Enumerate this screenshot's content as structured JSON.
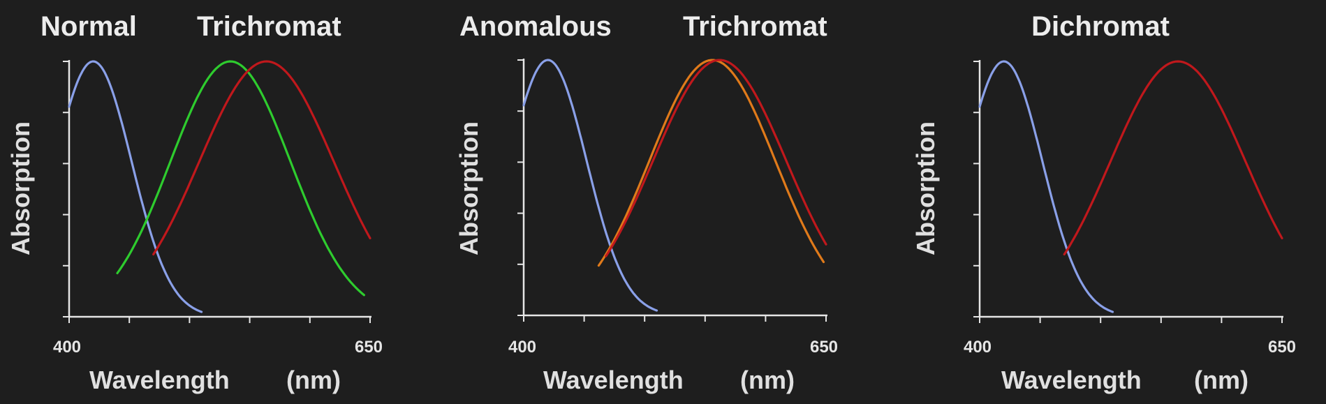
{
  "chart_data": [
    {
      "type": "line",
      "title_left": "Normal",
      "title_right": "Trichromat",
      "xlabel": "Wavelength",
      "xunit": "(nm)",
      "ylabel": "Absorption",
      "xlim": [
        400,
        650
      ],
      "ylim": [
        0,
        1
      ],
      "x_tick_labels": [
        "400",
        "650"
      ],
      "x_ticks": [
        400,
        450,
        500,
        550,
        600,
        650
      ],
      "y_ticks": [
        0,
        0.2,
        0.4,
        0.6,
        0.8,
        1.0
      ],
      "grid": false,
      "series": [
        {
          "color": "#8aa0e8",
          "peak": 420,
          "sigma": 32,
          "x_range": [
            400,
            510
          ]
        },
        {
          "color": "#2ecc2e",
          "peak": 534,
          "sigma": 50,
          "x_range": [
            440,
            645
          ]
        },
        {
          "color": "#c0181c",
          "peak": 564,
          "sigma": 56,
          "x_range": [
            470,
            650
          ]
        }
      ]
    },
    {
      "type": "line",
      "title_left": "Anomalous",
      "title_right": "Trichromat",
      "xlabel": "Wavelength",
      "xunit": "(nm)",
      "ylabel": "Absorption",
      "xlim": [
        400,
        650
      ],
      "ylim": [
        0,
        1
      ],
      "x_tick_labels": [
        "400",
        "650"
      ],
      "x_ticks": [
        400,
        450,
        500,
        550,
        600,
        650
      ],
      "y_ticks": [
        0,
        0.2,
        0.4,
        0.6,
        0.8,
        1.0
      ],
      "grid": false,
      "series": [
        {
          "color": "#8aa0e8",
          "peak": 420,
          "sigma": 32,
          "x_range": [
            400,
            510
          ]
        },
        {
          "color": "#e07a1a",
          "peak": 556,
          "sigma": 52,
          "x_range": [
            462,
            648
          ]
        },
        {
          "color": "#c0181c",
          "peak": 562,
          "sigma": 55,
          "x_range": [
            468,
            650
          ]
        }
      ]
    },
    {
      "type": "line",
      "title_left": "",
      "title_right": "Dichromat",
      "xlabel": "Wavelength",
      "xunit": "(nm)",
      "ylabel": "Absorption",
      "xlim": [
        400,
        650
      ],
      "ylim": [
        0,
        1
      ],
      "x_tick_labels": [
        "400",
        "650"
      ],
      "x_ticks": [
        400,
        450,
        500,
        550,
        600,
        650
      ],
      "y_ticks": [
        0,
        0.2,
        0.4,
        0.6,
        0.8,
        1.0
      ],
      "grid": false,
      "series": [
        {
          "color": "#8aa0e8",
          "peak": 420,
          "sigma": 32,
          "x_range": [
            400,
            510
          ]
        },
        {
          "color": "#c0181c",
          "peak": 564,
          "sigma": 56,
          "x_range": [
            470,
            650
          ]
        }
      ]
    }
  ]
}
